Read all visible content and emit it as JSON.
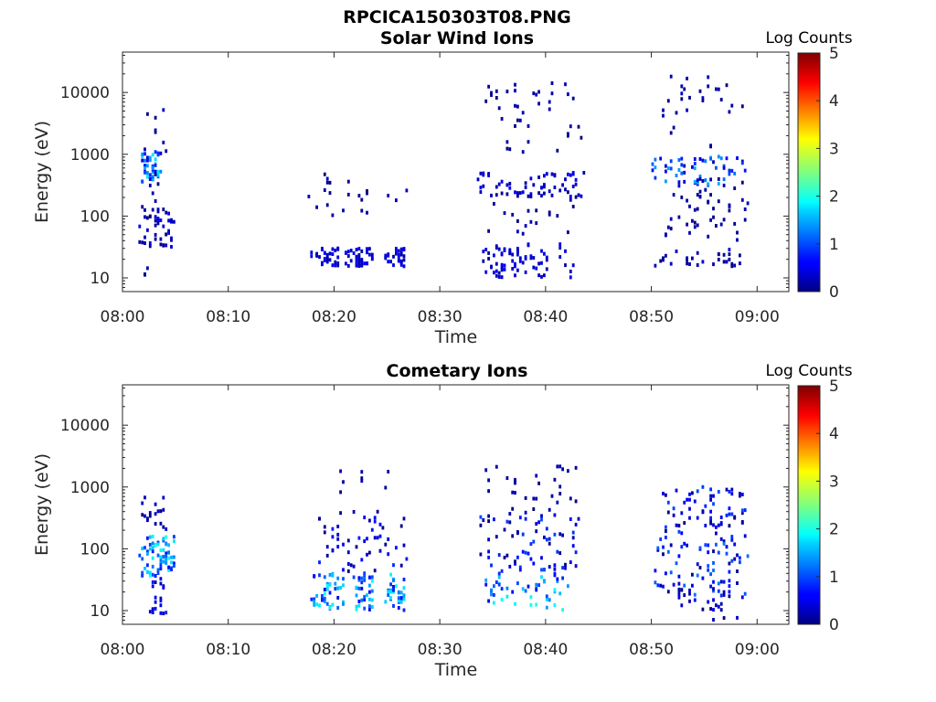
{
  "figure": {
    "title": "RPCICA150303T08.PNG"
  },
  "chart_data": [
    {
      "type": "heatmap",
      "title": "Solar Wind Ions",
      "xlabel": "Time",
      "ylabel": "Energy (eV)",
      "yscale": "log",
      "ylim": [
        6,
        45000
      ],
      "xlim_minutes": [
        0,
        63
      ],
      "x_ticks": [
        "08:00",
        "08:10",
        "08:20",
        "08:30",
        "08:40",
        "08:50",
        "09:00"
      ],
      "y_ticks": [
        "10",
        "100",
        "1000",
        "10000"
      ],
      "colorbar": {
        "label": "Log Counts",
        "range": [
          0,
          5
        ],
        "ticks": [
          "0",
          "1",
          "2",
          "3",
          "4",
          "5"
        ],
        "colormap": "jet"
      },
      "grid": false,
      "clusters": [
        {
          "t": [
            1.7,
            3.5
          ],
          "e": [
            350,
            1100
          ],
          "v": [
            0.4,
            1.8
          ],
          "n": 45
        },
        {
          "t": [
            1.6,
            4.8
          ],
          "e": [
            30,
            150
          ],
          "v": [
            0.0,
            0.6
          ],
          "n": 45
        },
        {
          "t": [
            1.8,
            4.5
          ],
          "e": [
            8,
            8000
          ],
          "v": [
            0.0,
            0.3
          ],
          "n": 18
        },
        {
          "t": [
            17.7,
            21.5
          ],
          "e": [
            15,
            30
          ],
          "v": [
            0.2,
            0.6
          ],
          "n": 40
        },
        {
          "t": [
            21.8,
            23.5
          ],
          "e": [
            15,
            30
          ],
          "v": [
            0.2,
            0.6
          ],
          "n": 30
        },
        {
          "t": [
            24.7,
            26.5
          ],
          "e": [
            15,
            30
          ],
          "v": [
            0.2,
            0.6
          ],
          "n": 30
        },
        {
          "t": [
            17.5,
            27
          ],
          "e": [
            100,
            500
          ],
          "v": [
            0.0,
            0.3
          ],
          "n": 22
        },
        {
          "t": [
            34,
            37.5
          ],
          "e": [
            10,
            35
          ],
          "v": [
            0.2,
            0.6
          ],
          "n": 45
        },
        {
          "t": [
            37.5,
            42.5
          ],
          "e": [
            10,
            35
          ],
          "v": [
            0.2,
            0.6
          ],
          "n": 30
        },
        {
          "t": [
            33.5,
            43.5
          ],
          "e": [
            200,
            500
          ],
          "v": [
            0.1,
            0.6
          ],
          "n": 55
        },
        {
          "t": [
            34,
            43.5
          ],
          "e": [
            1000,
            14000
          ],
          "v": [
            0.0,
            0.3
          ],
          "n": 40
        },
        {
          "t": [
            34,
            43.5
          ],
          "e": [
            50,
            250
          ],
          "v": [
            0.0,
            0.3
          ],
          "n": 28
        },
        {
          "t": [
            50.3,
            58.5
          ],
          "e": [
            15,
            30
          ],
          "v": [
            0.0,
            0.4
          ],
          "n": 30
        },
        {
          "t": [
            50,
            59
          ],
          "e": [
            300,
            900
          ],
          "v": [
            0.2,
            1.5
          ],
          "n": 60
        },
        {
          "t": [
            51,
            59
          ],
          "e": [
            40,
            450
          ],
          "v": [
            0.0,
            0.3
          ],
          "n": 50
        },
        {
          "t": [
            51,
            59
          ],
          "e": [
            1200,
            18000
          ],
          "v": [
            0.0,
            0.3
          ],
          "n": 28
        }
      ]
    },
    {
      "type": "heatmap",
      "title": "Cometary Ions",
      "xlabel": "Time",
      "ylabel": "Energy (eV)",
      "yscale": "log",
      "ylim": [
        6,
        45000
      ],
      "xlim_minutes": [
        0,
        63
      ],
      "x_ticks": [
        "08:00",
        "08:10",
        "08:20",
        "08:30",
        "08:40",
        "08:50",
        "09:00"
      ],
      "y_ticks": [
        "10",
        "100",
        "1000",
        "10000"
      ],
      "colorbar": {
        "label": "Log Counts",
        "range": [
          0,
          5
        ],
        "ticks": [
          "0",
          "1",
          "2",
          "3",
          "4",
          "5"
        ],
        "colormap": "jet"
      },
      "grid": false,
      "clusters": [
        {
          "t": [
            1.6,
            4.8
          ],
          "e": [
            35,
            160
          ],
          "v": [
            0.6,
            2.0
          ],
          "n": 70
        },
        {
          "t": [
            2.5,
            4
          ],
          "e": [
            8,
            35
          ],
          "v": [
            0.2,
            0.8
          ],
          "n": 20
        },
        {
          "t": [
            1.8,
            4
          ],
          "e": [
            200,
            800
          ],
          "v": [
            0.0,
            0.4
          ],
          "n": 18
        },
        {
          "t": [
            17.8,
            20.8
          ],
          "e": [
            10,
            40
          ],
          "v": [
            0.4,
            2.0
          ],
          "n": 45
        },
        {
          "t": [
            21.8,
            23.5
          ],
          "e": [
            10,
            40
          ],
          "v": [
            0.4,
            2.0
          ],
          "n": 35
        },
        {
          "t": [
            24.8,
            26.5
          ],
          "e": [
            10,
            40
          ],
          "v": [
            0.4,
            2.0
          ],
          "n": 35
        },
        {
          "t": [
            18,
            27
          ],
          "e": [
            40,
            400
          ],
          "v": [
            0.0,
            0.8
          ],
          "n": 55
        },
        {
          "t": [
            20,
            26
          ],
          "e": [
            600,
            2200
          ],
          "v": [
            0.0,
            0.3
          ],
          "n": 8
        },
        {
          "t": [
            34,
            42
          ],
          "e": [
            10,
            40
          ],
          "v": [
            0.6,
            2.0
          ],
          "n": 50
        },
        {
          "t": [
            33.5,
            43
          ],
          "e": [
            40,
            400
          ],
          "v": [
            0.0,
            1.0
          ],
          "n": 75
        },
        {
          "t": [
            34,
            43
          ],
          "e": [
            400,
            2200
          ],
          "v": [
            0.0,
            0.3
          ],
          "n": 30
        },
        {
          "t": [
            50,
            59
          ],
          "e": [
            15,
            150
          ],
          "v": [
            0.0,
            1.2
          ],
          "n": 80
        },
        {
          "t": [
            51,
            59
          ],
          "e": [
            150,
            1000
          ],
          "v": [
            0.0,
            1.0
          ],
          "n": 70
        },
        {
          "t": [
            51.5,
            58
          ],
          "e": [
            7,
            25
          ],
          "v": [
            0.0,
            0.5
          ],
          "n": 22
        }
      ]
    }
  ]
}
